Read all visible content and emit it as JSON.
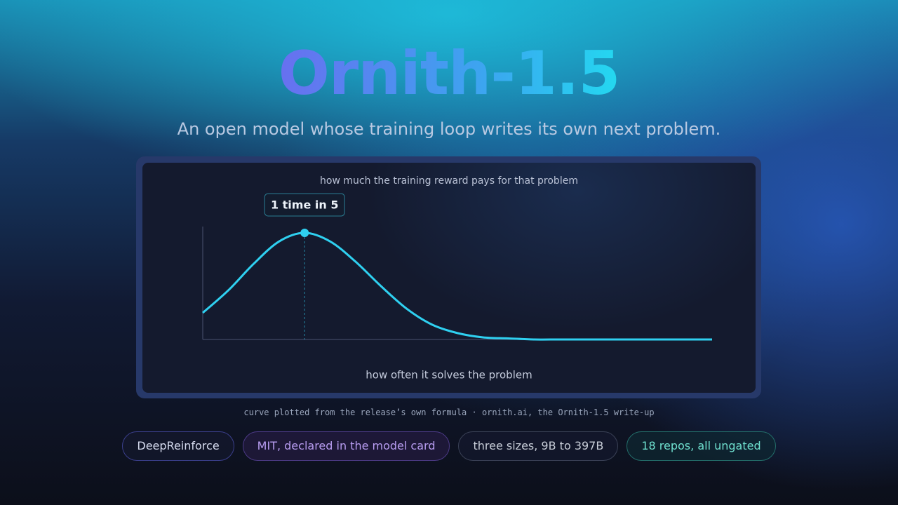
{
  "title": "Ornith-1.5",
  "subtitle": "An open model whose training loop writes its own next problem.",
  "chart_data": {
    "type": "line",
    "y_label": "how much the training reward pays for that problem",
    "x_label": "how often it solves the problem",
    "annotation": "1 time in 5",
    "color": "#2fd0f0",
    "x": [
      0,
      0.05,
      0.1,
      0.15,
      0.2,
      0.25,
      0.3,
      0.35,
      0.4,
      0.45,
      0.5,
      0.55,
      0.6,
      0.65,
      0.7,
      0.75,
      0.8,
      0.85,
      0.9,
      0.95,
      1
    ],
    "values": [
      0.25,
      0.46,
      0.71,
      0.92,
      1,
      0.92,
      0.73,
      0.5,
      0.29,
      0.14,
      0.06,
      0.02,
      0.01,
      0,
      0,
      0,
      0,
      0,
      0,
      0,
      0
    ],
    "xlim": [
      0,
      1
    ],
    "ylim": [
      0,
      1
    ]
  },
  "caption": "curve plotted from the release’s own formula · ornith.ai, the Ornith-1.5 write-up",
  "tags": [
    "DeepReinforce",
    "MIT, declared in the model card",
    "three sizes, 9B to 397B",
    "18 repos, all ungated"
  ]
}
